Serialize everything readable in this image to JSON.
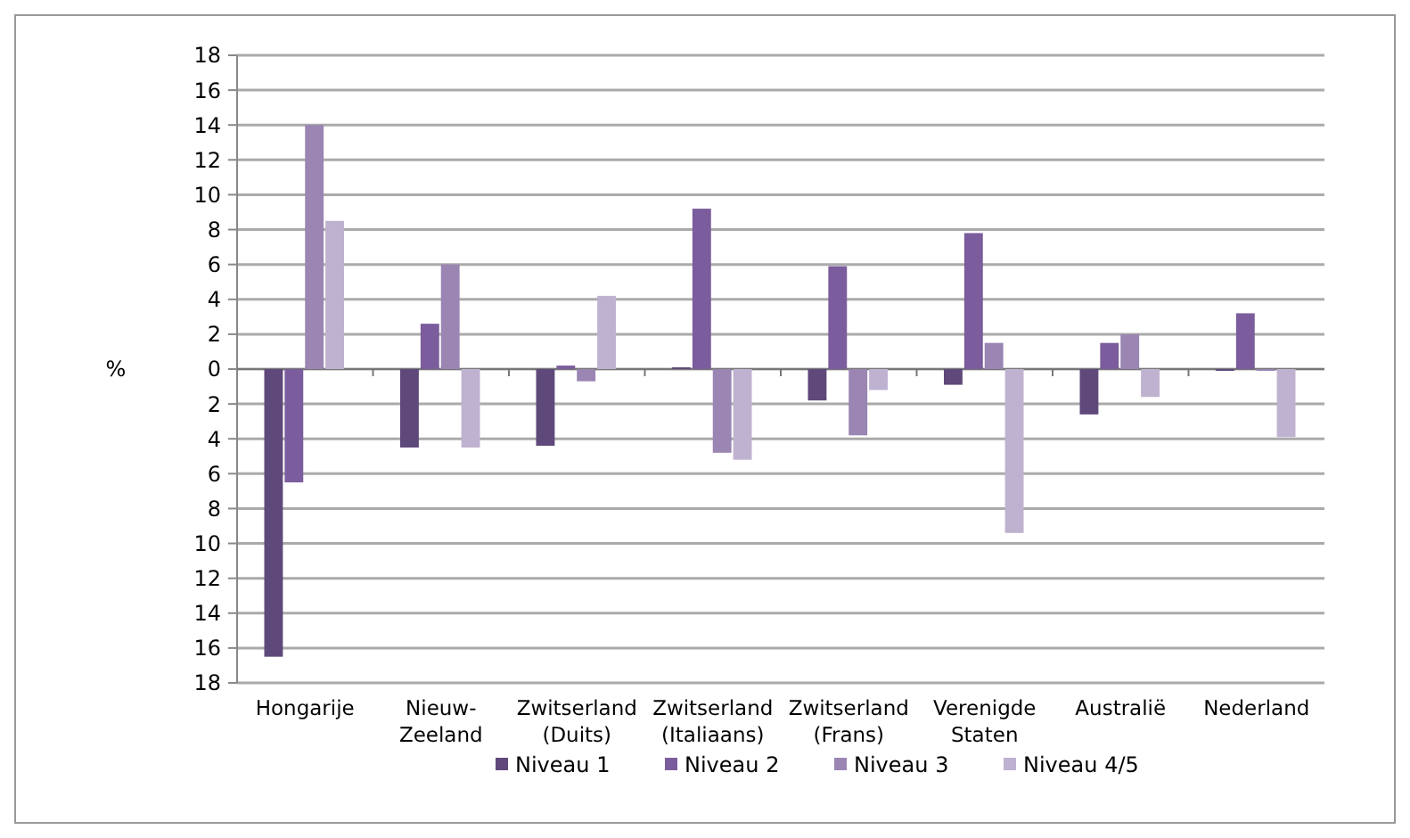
{
  "chart_data": {
    "type": "bar",
    "ylabel": "%",
    "categories": [
      "Hongarije",
      "Nieuw-Zeeland",
      "Zwitserland (Duits)",
      "Zwitserland (Italiaans)",
      "Zwitserland (Frans)",
      "Verenigde Staten",
      "Australië",
      "Nederland"
    ],
    "series": [
      {
        "name": "Niveau 1",
        "color": "#5f497a",
        "values": [
          -16.5,
          -4.5,
          -4.4,
          0.1,
          -1.8,
          -0.9,
          -2.6,
          -0.1
        ]
      },
      {
        "name": "Niveau 2",
        "color": "#7b5c9c",
        "values": [
          -6.5,
          2.6,
          0.2,
          9.2,
          5.9,
          7.8,
          1.5,
          3.2
        ]
      },
      {
        "name": "Niveau 3",
        "color": "#9a85b3",
        "values": [
          14,
          6,
          -0.7,
          -4.8,
          -3.8,
          1.5,
          2,
          -0.1
        ]
      },
      {
        "name": "Niveau 4/5",
        "color": "#bfb2d0",
        "values": [
          8.5,
          -4.5,
          4.2,
          -5.2,
          -1.2,
          -9.4,
          -1.6,
          -3.9
        ]
      }
    ],
    "ylim": [
      -18,
      18
    ],
    "yticks": [
      {
        "value": -18,
        "label": "18"
      },
      {
        "value": -16,
        "label": "16"
      },
      {
        "value": -14,
        "label": "14"
      },
      {
        "value": -12,
        "label": "12"
      },
      {
        "value": -10,
        "label": "10"
      },
      {
        "value": -8,
        "label": "8"
      },
      {
        "value": -6,
        "label": "6"
      },
      {
        "value": -4,
        "label": "4"
      },
      {
        "value": -2,
        "label": "2"
      },
      0,
      2,
      4,
      6,
      8,
      10,
      12,
      14,
      16,
      18
    ],
    "grid": "y",
    "legend": "bottom"
  }
}
